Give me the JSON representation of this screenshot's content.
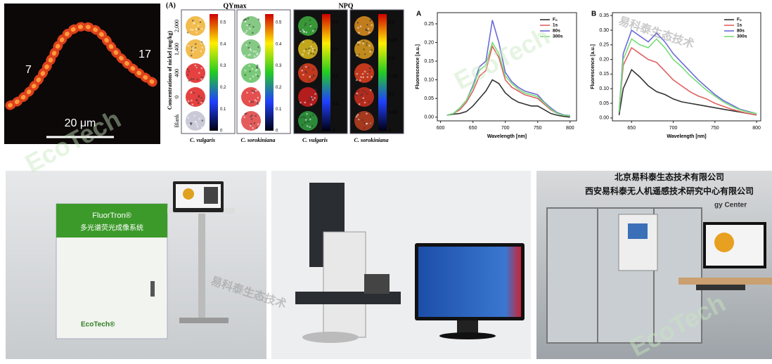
{
  "micrograph": {
    "labels": [
      "7",
      "17"
    ],
    "scale_bar": "20 μm"
  },
  "heatmap_figure": {
    "panel": "(A)",
    "titles": [
      "QYmax",
      "NPQ"
    ],
    "y_label": "Concentrations of nickel (mg/kg)",
    "row_labels": [
      "2,000",
      "1,400",
      "400",
      "0",
      "Blank"
    ],
    "colorbars": [
      [
        "0",
        "0.1",
        "0.2",
        "0.3",
        "0.4",
        "0.5"
      ],
      [
        "0",
        "0.1",
        "0.2",
        "0.3",
        "0.4",
        "0.5"
      ],
      [
        "0",
        "0.1",
        "0.2",
        "0.3",
        "0.4"
      ],
      [
        "0",
        "0.05",
        "0.1",
        "0.15",
        "0.2",
        "0.25",
        "0.3"
      ]
    ],
    "column_labels": [
      "C. vulgaris",
      "C. sorokiniana",
      "C. vulgaris",
      "C. sorokiniana"
    ]
  },
  "chart_data": [
    {
      "type": "line",
      "title": "A",
      "x_label": "Wavelength [nm]",
      "y_label": "Fluorescence [a.u.]",
      "x": [
        610,
        620,
        630,
        640,
        650,
        660,
        670,
        680,
        690,
        700,
        710,
        720,
        730,
        740,
        750,
        760,
        770,
        780,
        790,
        800
      ],
      "series": [
        {
          "name": "Fₒ",
          "color": "#333333",
          "values": [
            0.005,
            0.008,
            0.01,
            0.015,
            0.03,
            0.05,
            0.07,
            0.1,
            0.09,
            0.065,
            0.05,
            0.04,
            0.035,
            0.03,
            0.03,
            0.02,
            0.01,
            0.005,
            0.002,
            0.0
          ]
        },
        {
          "name": "1s",
          "color": "#e06060",
          "values": [
            0.005,
            0.01,
            0.02,
            0.04,
            0.07,
            0.11,
            0.125,
            0.19,
            0.16,
            0.1,
            0.08,
            0.07,
            0.06,
            0.055,
            0.05,
            0.035,
            0.02,
            0.01,
            0.005,
            0.003
          ]
        },
        {
          "name": "80s",
          "color": "#6b6bd8",
          "values": [
            0.005,
            0.01,
            0.025,
            0.045,
            0.085,
            0.135,
            0.15,
            0.26,
            0.2,
            0.12,
            0.095,
            0.08,
            0.07,
            0.065,
            0.06,
            0.04,
            0.025,
            0.012,
            0.006,
            0.004
          ]
        },
        {
          "name": "300s",
          "color": "#77dd77",
          "values": [
            0.005,
            0.01,
            0.025,
            0.045,
            0.08,
            0.125,
            0.14,
            0.2,
            0.17,
            0.11,
            0.09,
            0.075,
            0.065,
            0.06,
            0.055,
            0.038,
            0.022,
            0.01,
            0.005,
            0.003
          ]
        }
      ],
      "xlim": [
        595,
        810
      ],
      "xticks": [
        600,
        650,
        700,
        750,
        800
      ],
      "ylim": [
        -0.01,
        0.28
      ],
      "yticks": [
        {
          "value": 0,
          "label": "0.00"
        },
        {
          "value": 0.05,
          "label": "0.05"
        },
        {
          "value": 0.1,
          "label": "0.10"
        },
        {
          "value": 0.15,
          "label": "0.15"
        },
        {
          "value": 0.2,
          "label": "0.20"
        },
        {
          "value": 0.25,
          "label": "0.25"
        }
      ],
      "legend": "upper right"
    },
    {
      "type": "line",
      "title": "B",
      "x_label": "Wavelength [nm]",
      "y_label": "Fluorescence [a.u.]",
      "x": [
        635,
        640,
        650,
        660,
        670,
        680,
        690,
        700,
        710,
        720,
        730,
        740,
        750,
        760,
        770,
        780,
        790,
        800
      ],
      "series": [
        {
          "name": "Fₒ",
          "color": "#333333",
          "values": [
            0.01,
            0.1,
            0.165,
            0.14,
            0.11,
            0.09,
            0.08,
            0.065,
            0.055,
            0.05,
            0.045,
            0.04,
            0.035,
            0.03,
            0.025,
            0.02,
            0.015,
            0.01
          ]
        },
        {
          "name": "1s",
          "color": "#e06060",
          "values": [
            0.02,
            0.18,
            0.24,
            0.22,
            0.2,
            0.19,
            0.16,
            0.13,
            0.11,
            0.09,
            0.075,
            0.065,
            0.05,
            0.04,
            0.03,
            0.022,
            0.015,
            0.01
          ]
        },
        {
          "name": "80s",
          "color": "#6b6bd8",
          "values": [
            0.02,
            0.22,
            0.3,
            0.28,
            0.26,
            0.29,
            0.26,
            0.22,
            0.19,
            0.16,
            0.13,
            0.105,
            0.08,
            0.06,
            0.045,
            0.03,
            0.022,
            0.015
          ]
        },
        {
          "name": "300s",
          "color": "#77dd77",
          "values": [
            0.02,
            0.2,
            0.27,
            0.25,
            0.24,
            0.27,
            0.24,
            0.2,
            0.175,
            0.145,
            0.12,
            0.095,
            0.075,
            0.055,
            0.04,
            0.028,
            0.02,
            0.015
          ]
        }
      ],
      "xlim": [
        627,
        805
      ],
      "xticks": [
        650,
        700,
        750,
        800
      ],
      "ylim": [
        -0.01,
        0.36
      ],
      "yticks": [
        {
          "value": 0,
          "label": "0.00"
        },
        {
          "value": 0.05,
          "label": "0.05"
        },
        {
          "value": 0.1,
          "label": "0.10"
        },
        {
          "value": 0.15,
          "label": "0.15"
        },
        {
          "value": 0.2,
          "label": "0.20"
        },
        {
          "value": 0.25,
          "label": "0.25"
        },
        {
          "value": 0.3,
          "label": "0.30"
        },
        {
          "value": 0.35,
          "label": "0.35"
        }
      ],
      "legend": "upper right"
    }
  ],
  "photos": {
    "instrument_label": "FluorTron®",
    "instrument_name": "多光谱荧光成像系统",
    "brand": "EcoTech®",
    "company_line_1": "北京易科泰生态技术有限公司",
    "company_line_2": "西安易科泰无人机遥感技术研究中心有限公司",
    "center_sign": "gy Center"
  },
  "watermarks": [
    "EcoTech",
    "易科泰生态技术"
  ]
}
